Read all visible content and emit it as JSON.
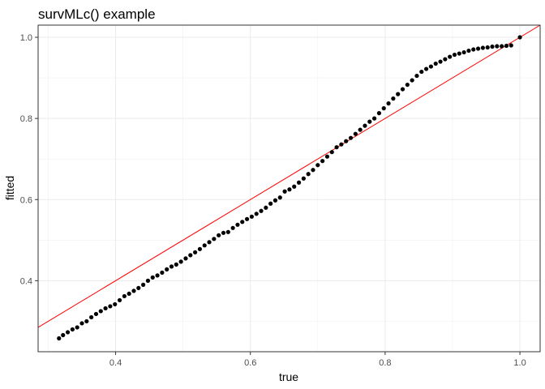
{
  "chart_data": {
    "type": "scatter",
    "title": "survMLc() example",
    "xlabel": "true",
    "ylabel": "fitted",
    "xlim": [
      0.285,
      1.03
    ],
    "ylim": [
      0.225,
      1.03
    ],
    "x_ticks": [
      0.4,
      0.6,
      0.8,
      1.0
    ],
    "x_tick_labels": [
      "0.4",
      "0.6",
      "0.8",
      "1.0"
    ],
    "y_ticks": [
      0.4,
      0.6,
      0.8,
      1.0
    ],
    "y_tick_labels": [
      "0.4",
      "0.6",
      "0.8",
      "1.0"
    ],
    "grid": true,
    "reference_line": {
      "slope": 1,
      "intercept": 0,
      "color": "#ff0000"
    },
    "point_color": "#000000",
    "x": [
      0.316,
      0.322,
      0.329,
      0.336,
      0.343,
      0.35,
      0.357,
      0.364,
      0.371,
      0.378,
      0.385,
      0.392,
      0.399,
      0.406,
      0.413,
      0.42,
      0.427,
      0.434,
      0.441,
      0.448,
      0.455,
      0.462,
      0.469,
      0.476,
      0.483,
      0.49,
      0.497,
      0.504,
      0.511,
      0.518,
      0.525,
      0.532,
      0.539,
      0.546,
      0.553,
      0.56,
      0.567,
      0.574,
      0.581,
      0.588,
      0.595,
      0.602,
      0.609,
      0.616,
      0.623,
      0.63,
      0.637,
      0.644,
      0.651,
      0.658,
      0.665,
      0.672,
      0.679,
      0.686,
      0.693,
      0.7,
      0.707,
      0.714,
      0.721,
      0.728,
      0.735,
      0.742,
      0.749,
      0.756,
      0.763,
      0.77,
      0.777,
      0.784,
      0.791,
      0.798,
      0.805,
      0.812,
      0.819,
      0.826,
      0.833,
      0.84,
      0.847,
      0.854,
      0.861,
      0.868,
      0.875,
      0.882,
      0.889,
      0.896,
      0.903,
      0.91,
      0.917,
      0.924,
      0.931,
      0.938,
      0.945,
      0.952,
      0.959,
      0.966,
      0.973,
      0.98,
      0.987,
      1.0
    ],
    "y": [
      0.258,
      0.266,
      0.273,
      0.28,
      0.285,
      0.295,
      0.3,
      0.31,
      0.318,
      0.325,
      0.332,
      0.337,
      0.342,
      0.352,
      0.362,
      0.368,
      0.375,
      0.382,
      0.39,
      0.4,
      0.408,
      0.413,
      0.42,
      0.428,
      0.435,
      0.44,
      0.447,
      0.455,
      0.463,
      0.47,
      0.478,
      0.487,
      0.495,
      0.503,
      0.512,
      0.518,
      0.52,
      0.53,
      0.538,
      0.545,
      0.552,
      0.558,
      0.565,
      0.572,
      0.58,
      0.59,
      0.598,
      0.605,
      0.62,
      0.625,
      0.632,
      0.642,
      0.652,
      0.663,
      0.673,
      0.685,
      0.695,
      0.706,
      0.717,
      0.729,
      0.736,
      0.744,
      0.752,
      0.762,
      0.772,
      0.782,
      0.792,
      0.8,
      0.813,
      0.825,
      0.837,
      0.849,
      0.86,
      0.872,
      0.883,
      0.894,
      0.905,
      0.915,
      0.922,
      0.928,
      0.935,
      0.94,
      0.946,
      0.952,
      0.957,
      0.96,
      0.963,
      0.967,
      0.97,
      0.972,
      0.974,
      0.975,
      0.977,
      0.978,
      0.978,
      0.979,
      0.98,
      1.0
    ]
  }
}
